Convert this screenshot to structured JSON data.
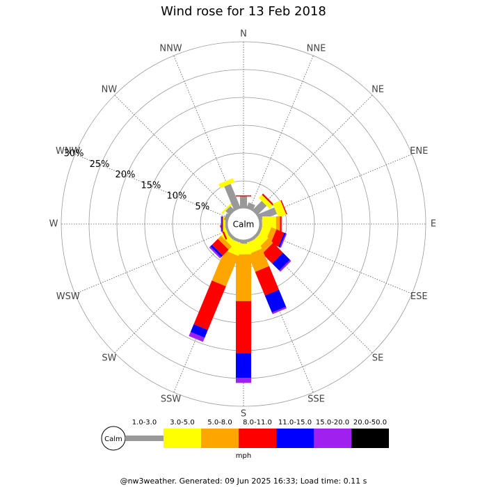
{
  "chart_data": {
    "type": "windrose",
    "title": "Wind rose for 13 Feb 2018",
    "categories": [
      "N",
      "NNE",
      "NE",
      "ENE",
      "E",
      "ESE",
      "SE",
      "SSE",
      "S",
      "SSW",
      "SW",
      "WSW",
      "W",
      "WNW",
      "NW",
      "NNW"
    ],
    "series": [
      {
        "name": "1.0-3.0",
        "color": "#999999",
        "values": [
          2.2,
          1.2,
          2.5,
          3.5,
          0.6,
          0.6,
          0.6,
          0.6,
          0.8,
          0.6,
          0.6,
          0.5,
          0.5,
          0.8,
          1.2,
          4.8
        ]
      },
      {
        "name": "3.0-5.0",
        "color": "#ffff00",
        "values": [
          0,
          0,
          0.8,
          1.5,
          2.5,
          1.5,
          1.6,
          2.0,
          1.9,
          2.3,
          1.0,
          0.5,
          0.3,
          0,
          0.3,
          0.8
        ]
      },
      {
        "name": "5.0-8.0",
        "color": "#ffa500",
        "values": [
          0,
          0,
          0,
          0,
          0.7,
          1.0,
          1.2,
          3.4,
          8.4,
          5.9,
          0.8,
          0,
          0.2,
          0,
          0,
          0
        ]
      },
      {
        "name": "8.0-11.0",
        "color": "#ff0000",
        "values": [
          0.2,
          0,
          0.3,
          0.2,
          0.3,
          1.5,
          2.5,
          4.6,
          9.4,
          8.5,
          1.5,
          0.3,
          0,
          0,
          0,
          0
        ]
      },
      {
        "name": "11.0-15.0",
        "color": "#0000ff",
        "values": [
          0,
          0,
          0,
          0,
          0,
          0.3,
          1.8,
          3.3,
          4.4,
          1.5,
          0.4,
          0,
          0.2,
          0,
          0,
          0
        ]
      },
      {
        "name": "15.0-20.0",
        "color": "#a020f0",
        "values": [
          0,
          0,
          0,
          0,
          0,
          0.2,
          0.3,
          0.3,
          0.9,
          0.8,
          0.3,
          0,
          0.1,
          0,
          0,
          0
        ]
      },
      {
        "name": "20.0-50.0",
        "color": "#000000",
        "values": [
          0,
          0,
          0,
          0,
          0,
          0,
          0,
          0,
          0,
          0,
          0,
          0,
          0,
          0,
          0,
          0
        ]
      }
    ],
    "rlim": [
      0,
      30
    ],
    "rticks": [
      {
        "value": 5,
        "label": "5%"
      },
      {
        "value": 10,
        "label": "10%"
      },
      {
        "value": 15,
        "label": "15%"
      },
      {
        "value": 20,
        "label": "20%"
      },
      {
        "value": 25,
        "label": "25%"
      },
      {
        "value": 30,
        "label": "30%"
      }
    ],
    "calm_label": "Calm",
    "unit": "mph",
    "footer": "@nw3weather. Generated: 09 Jun 2025 16:33; Load time: 0.11 s"
  }
}
